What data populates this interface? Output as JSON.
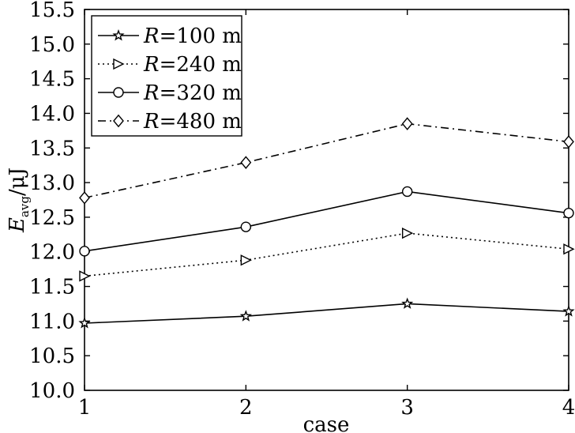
{
  "chart_data": {
    "type": "line",
    "title": "",
    "xlabel": "case",
    "ylabel": {
      "main": "E",
      "sub": "avg",
      "unit": "/μJ"
    },
    "categories": [
      "1",
      "2",
      "3",
      "4"
    ],
    "x": [
      1,
      2,
      3,
      4
    ],
    "xlim": [
      1,
      4
    ],
    "ylim": [
      10.0,
      15.5
    ],
    "yticks": [
      "10.0",
      "10.5",
      "11.0",
      "11.5",
      "12.0",
      "12.5",
      "13.0",
      "13.5",
      "14.0",
      "14.5",
      "15.0",
      "15.5"
    ],
    "grid": false,
    "legend_position": "top-left",
    "series": [
      {
        "name": "R=100 m",
        "label_var": "R",
        "label_rest": "=100 m",
        "marker": "star",
        "linestyle": "solid",
        "values": [
          10.97,
          11.07,
          11.25,
          11.14
        ]
      },
      {
        "name": "R=240 m",
        "label_var": "R",
        "label_rest": "=240 m",
        "marker": "triangle-right",
        "linestyle": "dotted",
        "values": [
          11.65,
          11.88,
          12.27,
          12.04
        ]
      },
      {
        "name": "R=320 m",
        "label_var": "R",
        "label_rest": "=320 m",
        "marker": "circle",
        "linestyle": "solid",
        "values": [
          12.01,
          12.36,
          12.87,
          12.56
        ]
      },
      {
        "name": "R=480 m",
        "label_var": "R",
        "label_rest": "=480 m",
        "marker": "diamond",
        "linestyle": "dashdot",
        "values": [
          12.78,
          13.29,
          13.85,
          13.59
        ]
      }
    ]
  }
}
